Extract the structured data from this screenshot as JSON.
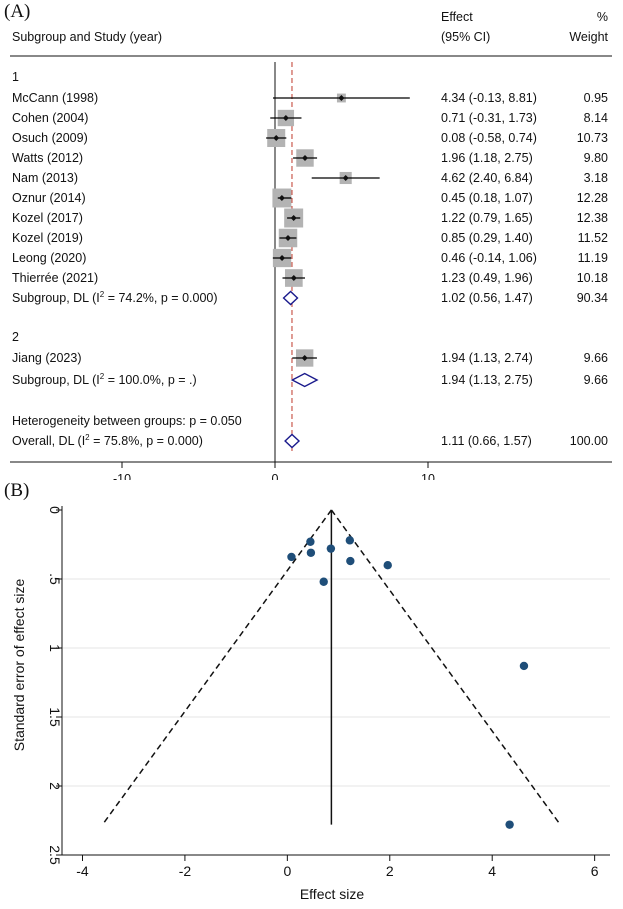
{
  "panels": {
    "a": "(A)",
    "b": "(B)"
  },
  "forest": {
    "header": {
      "study_col": "Subgroup and Study (year)",
      "effect_line1": "Effect",
      "effect_line2": "(95% CI)",
      "weight_line1": "%",
      "weight_line2": "Weight"
    },
    "groups": [
      {
        "label": "1"
      },
      {
        "label": "2"
      }
    ],
    "heterogeneity_text": "Heterogeneity between groups: p = 0.050",
    "x_ticks": [
      -10,
      0,
      10
    ],
    "xlim": [
      -18,
      20
    ],
    "overall_line": 1.11
  },
  "funnel": {
    "ylabel": "Standard error of effect size",
    "xlabel": "Effect size",
    "x_ticks": [
      -4,
      -2,
      0,
      2,
      4,
      6
    ],
    "y_ticks": [
      0,
      0.5,
      1,
      1.5,
      2,
      2.5
    ],
    "y_tick_labels": [
      "0",
      ".5",
      "1",
      "1.5",
      "2",
      "2.5"
    ],
    "xlim": [
      -4.4,
      6.3
    ],
    "ylim": [
      0,
      2.5
    ],
    "pooled_effect": 0.86,
    "funnel_bottom_se": 2.28,
    "colors": {
      "points": "#1f4e79",
      "lines": "#111111"
    }
  },
  "chart_data": [
    {
      "type": "forest",
      "x_axis_ticks": [
        -10,
        0,
        10
      ],
      "colors": {
        "ci_line": "#000000",
        "box": "#b3b3b3",
        "diamond": "#1a1a8c",
        "overall_line": "#c0392b"
      },
      "rows": [
        {
          "label": "McCann (1998)",
          "effect": 4.34,
          "lo": -0.13,
          "hi": 8.81,
          "ci_text": "4.34 (-0.13, 8.81)",
          "weight": 0.95,
          "weight_text": "0.95",
          "group": "1",
          "kind": "study"
        },
        {
          "label": "Cohen (2004)",
          "effect": 0.71,
          "lo": -0.31,
          "hi": 1.73,
          "ci_text": "0.71 (-0.31, 1.73)",
          "weight": 8.14,
          "weight_text": "8.14",
          "group": "1",
          "kind": "study"
        },
        {
          "label": "Osuch (2009)",
          "effect": 0.08,
          "lo": -0.58,
          "hi": 0.74,
          "ci_text": "0.08 (-0.58, 0.74)",
          "weight": 10.73,
          "weight_text": "10.73",
          "group": "1",
          "kind": "study"
        },
        {
          "label": "Watts (2012)",
          "effect": 1.96,
          "lo": 1.18,
          "hi": 2.75,
          "ci_text": "1.96 (1.18, 2.75)",
          "weight": 9.8,
          "weight_text": "9.80",
          "group": "1",
          "kind": "study"
        },
        {
          "label": "Nam (2013)",
          "effect": 4.62,
          "lo": 2.4,
          "hi": 6.84,
          "ci_text": "4.62 (2.40, 6.84)",
          "weight": 3.18,
          "weight_text": "3.18",
          "group": "1",
          "kind": "study"
        },
        {
          "label": "Oznur (2014)",
          "effect": 0.45,
          "lo": 0.18,
          "hi": 1.07,
          "ci_text": "0.45 (0.18, 1.07)",
          "weight": 12.28,
          "weight_text": "12.28",
          "group": "1",
          "kind": "study"
        },
        {
          "label": "Kozel (2017)",
          "effect": 1.22,
          "lo": 0.79,
          "hi": 1.65,
          "ci_text": "1.22 (0.79, 1.65)",
          "weight": 12.38,
          "weight_text": "12.38",
          "group": "1",
          "kind": "study"
        },
        {
          "label": "Kozel (2019)",
          "effect": 0.85,
          "lo": 0.29,
          "hi": 1.4,
          "ci_text": "0.85 (0.29, 1.40)",
          "weight": 11.52,
          "weight_text": "11.52",
          "group": "1",
          "kind": "study"
        },
        {
          "label": "Leong (2020)",
          "effect": 0.46,
          "lo": -0.14,
          "hi": 1.06,
          "ci_text": "0.46 (-0.14, 1.06)",
          "weight": 11.19,
          "weight_text": "11.19",
          "group": "1",
          "kind": "study"
        },
        {
          "label": "Thierrée (2021)",
          "effect": 1.23,
          "lo": 0.49,
          "hi": 1.96,
          "ci_text": "1.23 (0.49, 1.96)",
          "weight": 10.18,
          "weight_text": "10.18",
          "group": "1",
          "kind": "study"
        },
        {
          "label": "Subgroup, DL (I² = 74.2%, p = 0.000)",
          "effect": 1.02,
          "lo": 0.56,
          "hi": 1.47,
          "ci_text": "1.02 (0.56, 1.47)",
          "weight": 90.34,
          "weight_text": "90.34",
          "group": "1",
          "kind": "subtotal"
        },
        {
          "label": "Jiang (2023)",
          "effect": 1.94,
          "lo": 1.13,
          "hi": 2.74,
          "ci_text": "1.94 (1.13, 2.74)",
          "weight": 9.66,
          "weight_text": "9.66",
          "group": "2",
          "kind": "study"
        },
        {
          "label": "Subgroup, DL (I² = 100.0%, p = .)",
          "effect": 1.94,
          "lo": 1.13,
          "hi": 2.75,
          "ci_text": "1.94 (1.13, 2.75)",
          "weight": 9.66,
          "weight_text": "9.66",
          "group": "2",
          "kind": "subtotal"
        },
        {
          "label": "Overall, DL (I² = 75.8%, p = 0.000)",
          "effect": 1.11,
          "lo": 0.66,
          "hi": 1.57,
          "ci_text": "1.11 (0.66, 1.57)",
          "weight": 100.0,
          "weight_text": "100.00",
          "group": "",
          "kind": "overall"
        }
      ]
    },
    {
      "type": "scatter",
      "xlabel": "Effect size",
      "ylabel": "Standard error of effect size",
      "xlim": [
        -4.4,
        6.3
      ],
      "ylim": [
        0,
        2.5
      ],
      "y_reversed": true,
      "points": [
        {
          "x": 4.34,
          "y": 2.28
        },
        {
          "x": 0.71,
          "y": 0.52
        },
        {
          "x": 0.08,
          "y": 0.34
        },
        {
          "x": 1.96,
          "y": 0.4
        },
        {
          "x": 4.62,
          "y": 1.13
        },
        {
          "x": 0.45,
          "y": 0.23
        },
        {
          "x": 1.22,
          "y": 0.22
        },
        {
          "x": 0.85,
          "y": 0.28
        },
        {
          "x": 0.46,
          "y": 0.31
        },
        {
          "x": 1.23,
          "y": 0.37
        }
      ]
    }
  ]
}
